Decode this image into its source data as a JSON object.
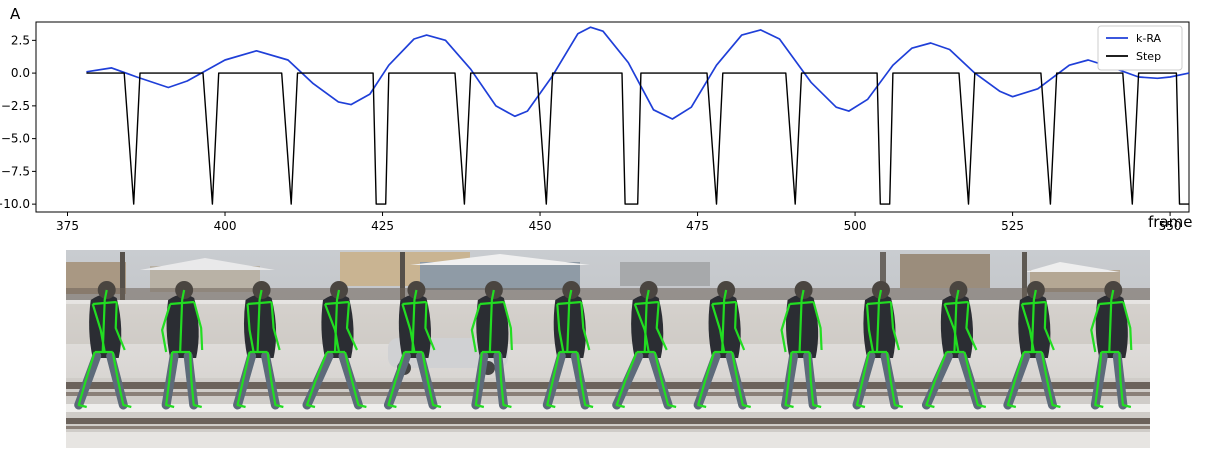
{
  "chart_data": {
    "type": "line",
    "xlabel": "frame",
    "ylabel": "A",
    "xlim": [
      370,
      553
    ],
    "ylim": [
      -10.6,
      3.9
    ],
    "x_ticks": [
      "375",
      "400",
      "425",
      "450",
      "475",
      "500",
      "525",
      "550"
    ],
    "y_ticks": [
      "2.5",
      "0.0",
      "−2.5",
      "−5.0",
      "−7.5",
      "−10.0"
    ],
    "grid": false,
    "legend_position": "top-right",
    "series": [
      {
        "name": "k-RA",
        "color": "#1f3fd8",
        "points": [
          [
            378,
            0.1
          ],
          [
            382,
            0.4
          ],
          [
            386,
            -0.3
          ],
          [
            391,
            -1.1
          ],
          [
            394,
            -0.6
          ],
          [
            400,
            1.0
          ],
          [
            405,
            1.7
          ],
          [
            410,
            1.0
          ],
          [
            414,
            -0.8
          ],
          [
            418,
            -2.2
          ],
          [
            420,
            -2.4
          ],
          [
            423,
            -1.6
          ],
          [
            426,
            0.6
          ],
          [
            430,
            2.6
          ],
          [
            432,
            2.9
          ],
          [
            435,
            2.5
          ],
          [
            439,
            0.3
          ],
          [
            443,
            -2.5
          ],
          [
            446,
            -3.3
          ],
          [
            448,
            -2.9
          ],
          [
            452,
            -0.2
          ],
          [
            456,
            3.0
          ],
          [
            458,
            3.5
          ],
          [
            460,
            3.2
          ],
          [
            464,
            0.8
          ],
          [
            468,
            -2.8
          ],
          [
            471,
            -3.5
          ],
          [
            474,
            -2.6
          ],
          [
            478,
            0.6
          ],
          [
            482,
            2.9
          ],
          [
            485,
            3.3
          ],
          [
            488,
            2.6
          ],
          [
            493,
            -0.7
          ],
          [
            497,
            -2.6
          ],
          [
            499,
            -2.9
          ],
          [
            502,
            -2.0
          ],
          [
            506,
            0.6
          ],
          [
            509,
            1.9
          ],
          [
            512,
            2.3
          ],
          [
            515,
            1.8
          ],
          [
            519,
            0.0
          ],
          [
            523,
            -1.4
          ],
          [
            525,
            -1.8
          ],
          [
            529,
            -1.2
          ],
          [
            534,
            0.6
          ],
          [
            537,
            1.0
          ],
          [
            541,
            0.4
          ],
          [
            545,
            -0.3
          ],
          [
            548,
            -0.4
          ],
          [
            550,
            -0.3
          ],
          [
            553,
            0.0
          ]
        ]
      },
      {
        "name": "Step",
        "color": "#000000",
        "points": [
          [
            378,
            0
          ],
          [
            384,
            0
          ],
          [
            385.5,
            -10
          ],
          [
            386.5,
            0
          ],
          [
            396.5,
            0
          ],
          [
            398,
            -10
          ],
          [
            399,
            0
          ],
          [
            409,
            0
          ],
          [
            410.5,
            -10
          ],
          [
            411.5,
            0
          ],
          [
            423.5,
            0
          ],
          [
            424,
            -10
          ],
          [
            425.5,
            -10
          ],
          [
            426,
            0
          ],
          [
            436.5,
            0
          ],
          [
            438,
            -10
          ],
          [
            439,
            0
          ],
          [
            449.5,
            0
          ],
          [
            451,
            -10
          ],
          [
            452,
            0
          ],
          [
            463,
            0
          ],
          [
            463.5,
            -10
          ],
          [
            465.5,
            -10
          ],
          [
            466,
            0
          ],
          [
            476.5,
            0
          ],
          [
            478,
            -10
          ],
          [
            479,
            0
          ],
          [
            489,
            0
          ],
          [
            490.5,
            -10
          ],
          [
            491.5,
            0
          ],
          [
            503.5,
            0
          ],
          [
            504,
            -10
          ],
          [
            505.5,
            -10
          ],
          [
            506,
            0
          ],
          [
            516.5,
            0
          ],
          [
            518,
            -10
          ],
          [
            519,
            0
          ],
          [
            529.5,
            0
          ],
          [
            531,
            -10
          ],
          [
            532,
            0
          ],
          [
            542.5,
            0
          ],
          [
            544,
            -10
          ],
          [
            545,
            0
          ],
          [
            551,
            0
          ],
          [
            551.5,
            -10
          ],
          [
            553,
            -10
          ]
        ]
      }
    ]
  },
  "photo_strip": {
    "frame_count": 14,
    "skeleton_color": "#22dd22"
  }
}
